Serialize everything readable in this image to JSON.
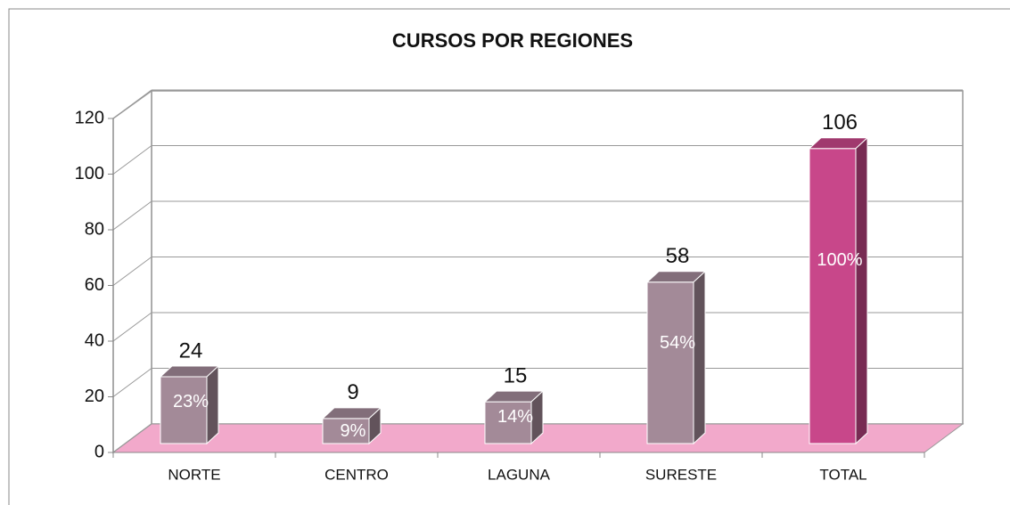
{
  "chart_data": {
    "type": "bar3d",
    "title": "CURSOS POR REGIONES",
    "categories": [
      "NORTE",
      "CENTRO",
      "LAGUNA",
      "SURESTE",
      "TOTAL"
    ],
    "values": [
      24,
      9,
      15,
      58,
      106
    ],
    "percent_labels": [
      "23%",
      "9%",
      "14%",
      "54%",
      "100%"
    ],
    "colors": [
      "#a38a98",
      "#a38a98",
      "#a38a98",
      "#a38a98",
      "#c8478a"
    ],
    "ylim": [
      0,
      120
    ],
    "yticks": [
      0,
      20,
      40,
      60,
      80,
      100,
      120
    ],
    "grid": true
  }
}
